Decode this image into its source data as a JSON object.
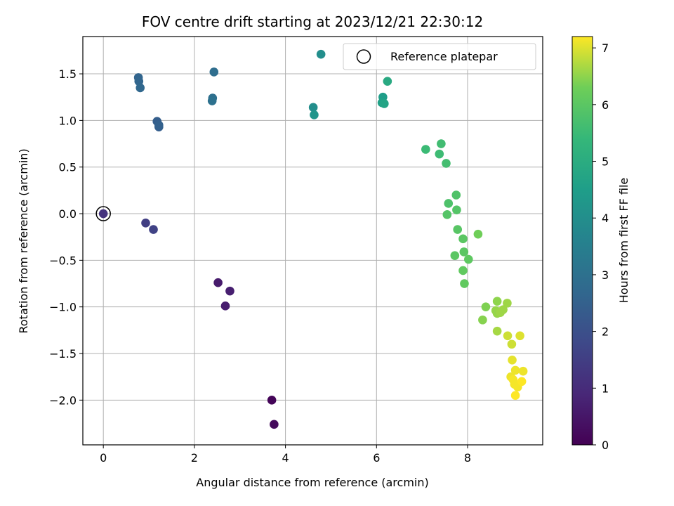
{
  "chart_data": {
    "type": "scatter",
    "title": "FOV centre drift starting at 2023/12/21 22:30:12",
    "xlabel": "Angular distance from reference (arcmin)",
    "ylabel": "Rotation from reference (arcmin)",
    "xlim": [
      -0.45,
      9.65
    ],
    "ylim": [
      -2.48,
      1.9
    ],
    "xticks": [
      0,
      2,
      4,
      6,
      8
    ],
    "yticks": [
      -2.0,
      -1.5,
      -1.0,
      -0.5,
      0.0,
      0.5,
      1.0,
      1.5
    ],
    "xtick_labels": [
      "0",
      "2",
      "4",
      "6",
      "8"
    ],
    "ytick_labels": [
      "−2.0",
      "−1.5",
      "−1.0",
      "−0.5",
      "0.0",
      "0.5",
      "1.0",
      "1.5"
    ],
    "grid": true,
    "legend": {
      "placement": "top-right",
      "entries": [
        "Reference platepar"
      ]
    },
    "reference_point": {
      "x": 0.0,
      "y": 0.0
    },
    "colorbar": {
      "label": "Hours from first FF file",
      "colormap": "viridis",
      "range": [
        0,
        7.2
      ],
      "ticks": [
        0,
        1,
        2,
        3,
        4,
        5,
        6,
        7
      ],
      "tick_labels": [
        "0",
        "1",
        "2",
        "3",
        "4",
        "5",
        "6",
        "7"
      ]
    },
    "points": [
      {
        "x": 3.7,
        "y": -2.0,
        "c": 0.1
      },
      {
        "x": 3.75,
        "y": -2.26,
        "c": 0.2
      },
      {
        "x": 2.52,
        "y": -0.74,
        "c": 0.6
      },
      {
        "x": 2.78,
        "y": -0.83,
        "c": 0.7
      },
      {
        "x": 2.68,
        "y": -0.99,
        "c": 0.65
      },
      {
        "x": 0.0,
        "y": 0.0,
        "c": 1.2
      },
      {
        "x": 0.93,
        "y": -0.1,
        "c": 1.5
      },
      {
        "x": 1.1,
        "y": -0.17,
        "c": 1.6
      },
      {
        "x": 1.18,
        "y": 0.99,
        "c": 2.4
      },
      {
        "x": 1.22,
        "y": 0.93,
        "c": 2.45
      },
      {
        "x": 1.22,
        "y": 0.95,
        "c": 2.5
      },
      {
        "x": 0.77,
        "y": 1.46,
        "c": 2.6
      },
      {
        "x": 0.78,
        "y": 1.42,
        "c": 2.65
      },
      {
        "x": 0.81,
        "y": 1.35,
        "c": 2.7
      },
      {
        "x": 2.43,
        "y": 1.52,
        "c": 2.9
      },
      {
        "x": 2.4,
        "y": 1.24,
        "c": 2.95
      },
      {
        "x": 2.39,
        "y": 1.21,
        "c": 3.0
      },
      {
        "x": 4.61,
        "y": 1.14,
        "c": 4.0
      },
      {
        "x": 4.63,
        "y": 1.06,
        "c": 4.2
      },
      {
        "x": 4.78,
        "y": 1.71,
        "c": 4.0
      },
      {
        "x": 6.14,
        "y": 1.25,
        "c": 4.5
      },
      {
        "x": 6.12,
        "y": 1.19,
        "c": 4.6
      },
      {
        "x": 6.17,
        "y": 1.18,
        "c": 4.7
      },
      {
        "x": 6.24,
        "y": 1.42,
        "c": 4.9
      },
      {
        "x": 7.08,
        "y": 0.69,
        "c": 5.5
      },
      {
        "x": 7.38,
        "y": 0.64,
        "c": 5.55
      },
      {
        "x": 7.42,
        "y": 0.75,
        "c": 5.6
      },
      {
        "x": 7.53,
        "y": 0.54,
        "c": 5.65
      },
      {
        "x": 7.58,
        "y": 0.11,
        "c": 5.8
      },
      {
        "x": 7.75,
        "y": 0.2,
        "c": 5.85
      },
      {
        "x": 7.55,
        "y": -0.01,
        "c": 5.9
      },
      {
        "x": 7.76,
        "y": 0.04,
        "c": 5.9
      },
      {
        "x": 7.78,
        "y": -0.17,
        "c": 5.95
      },
      {
        "x": 7.9,
        "y": -0.27,
        "c": 6.0
      },
      {
        "x": 7.92,
        "y": -0.41,
        "c": 6.0
      },
      {
        "x": 7.72,
        "y": -0.45,
        "c": 6.0
      },
      {
        "x": 8.02,
        "y": -0.49,
        "c": 6.05
      },
      {
        "x": 7.9,
        "y": -0.61,
        "c": 6.1
      },
      {
        "x": 7.93,
        "y": -0.75,
        "c": 6.1
      },
      {
        "x": 8.23,
        "y": -0.22,
        "c": 6.3
      },
      {
        "x": 8.4,
        "y": -1.0,
        "c": 6.4
      },
      {
        "x": 8.33,
        "y": -1.14,
        "c": 6.45
      },
      {
        "x": 8.65,
        "y": -0.94,
        "c": 6.5
      },
      {
        "x": 8.62,
        "y": -1.04,
        "c": 6.55
      },
      {
        "x": 8.65,
        "y": -1.07,
        "c": 6.55
      },
      {
        "x": 8.72,
        "y": -1.06,
        "c": 6.6
      },
      {
        "x": 8.78,
        "y": -1.03,
        "c": 6.6
      },
      {
        "x": 8.87,
        "y": -0.96,
        "c": 6.6
      },
      {
        "x": 8.65,
        "y": -1.26,
        "c": 6.65
      },
      {
        "x": 8.88,
        "y": -1.31,
        "c": 6.9
      },
      {
        "x": 8.97,
        "y": -1.4,
        "c": 6.9
      },
      {
        "x": 9.15,
        "y": -1.31,
        "c": 7.0
      },
      {
        "x": 8.98,
        "y": -1.57,
        "c": 7.05
      },
      {
        "x": 9.05,
        "y": -1.68,
        "c": 7.1
      },
      {
        "x": 9.22,
        "y": -1.69,
        "c": 7.1
      },
      {
        "x": 8.95,
        "y": -1.75,
        "c": 7.1
      },
      {
        "x": 9.0,
        "y": -1.78,
        "c": 7.15
      },
      {
        "x": 9.03,
        "y": -1.83,
        "c": 7.15
      },
      {
        "x": 9.1,
        "y": -1.86,
        "c": 7.15
      },
      {
        "x": 9.19,
        "y": -1.8,
        "c": 7.2
      },
      {
        "x": 9.05,
        "y": -1.95,
        "c": 7.2
      }
    ]
  }
}
